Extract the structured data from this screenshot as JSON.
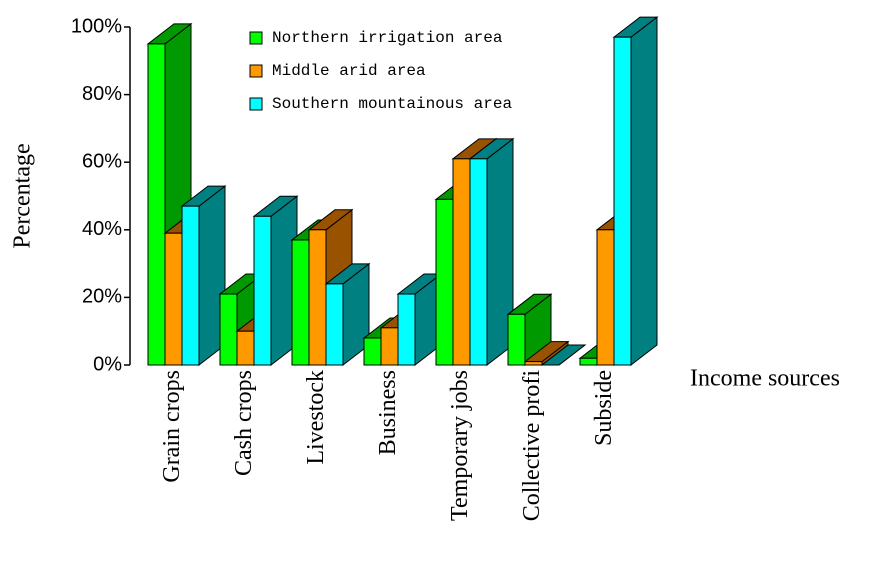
{
  "chart_data": {
    "type": "bar3d",
    "xlabel": "Income sources",
    "ylabel": "Percentage",
    "categories": [
      "Grain crops",
      "Cash crops",
      "Livestock",
      "Business",
      "Temporary jobs",
      "Collective profi",
      "Subside"
    ],
    "series": [
      {
        "name": "Northern irrigation area",
        "color": "#00ff00",
        "side_color": "#009900",
        "values": [
          95,
          21,
          37,
          8,
          49,
          15,
          2
        ]
      },
      {
        "name": "Middle arid area",
        "color": "#ff9900",
        "side_color": "#995200",
        "values": [
          39,
          10,
          40,
          11,
          61,
          1,
          40
        ]
      },
      {
        "name": "Southern mountainous area",
        "color": "#00ffff",
        "side_color": "#008080",
        "values": [
          47,
          44,
          24,
          21,
          61,
          0,
          97
        ]
      }
    ],
    "ylim": [
      0,
      100
    ],
    "yticks": [
      {
        "value": 0,
        "label": "0%"
      },
      {
        "value": 20,
        "label": "20%"
      },
      {
        "value": 40,
        "label": "40%"
      },
      {
        "value": 60,
        "label": "60%"
      },
      {
        "value": 80,
        "label": "80%"
      },
      {
        "value": 100,
        "label": "100%"
      }
    ]
  }
}
